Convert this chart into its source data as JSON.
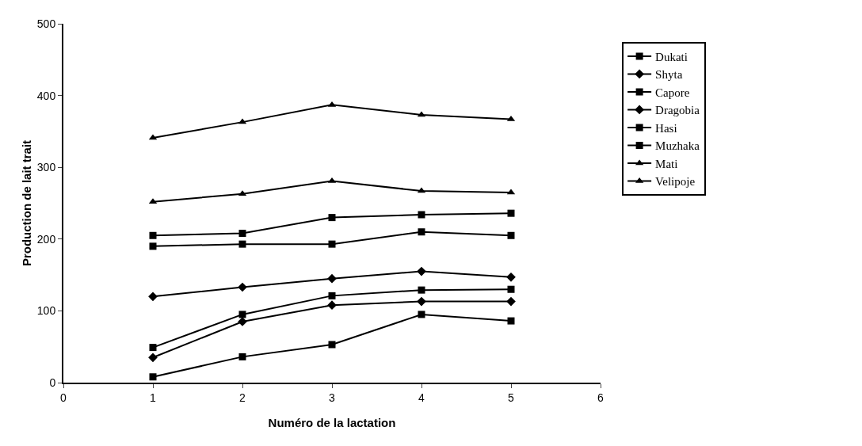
{
  "chart_data": {
    "type": "line",
    "xlabel": "Numéro de la lactation",
    "ylabel": "Production de lait trait",
    "x": [
      1,
      2,
      3,
      4,
      5
    ],
    "series": [
      {
        "name": "Dukati",
        "color": "#000000",
        "marker": "square",
        "values": [
          8,
          36,
          53,
          95,
          86
        ]
      },
      {
        "name": "Shyta",
        "color": "#000000",
        "marker": "diamond",
        "values": [
          35,
          85,
          108,
          113,
          113
        ]
      },
      {
        "name": "Capore",
        "color": "#000000",
        "marker": "square",
        "values": [
          49,
          95,
          121,
          129,
          130
        ]
      },
      {
        "name": "Dragobia",
        "color": "#000000",
        "marker": "diamond",
        "values": [
          120,
          133,
          145,
          155,
          147
        ]
      },
      {
        "name": "Hasi",
        "color": "#000000",
        "marker": "square",
        "values": [
          190,
          193,
          193,
          210,
          205
        ]
      },
      {
        "name": "Muzhaka",
        "color": "#000000",
        "marker": "square",
        "values": [
          205,
          208,
          230,
          234,
          236
        ]
      },
      {
        "name": "Mati",
        "color": "#000000",
        "marker": "triangle",
        "values": [
          252,
          263,
          281,
          267,
          265
        ]
      },
      {
        "name": "Velipoje",
        "color": "#000000",
        "marker": "triangle",
        "values": [
          341,
          363,
          387,
          373,
          367
        ]
      }
    ],
    "xlim": [
      0,
      6
    ],
    "xticks": [
      0,
      1,
      2,
      3,
      4,
      5,
      6
    ],
    "ylim": [
      0,
      500
    ],
    "yticks": [
      0,
      100,
      200,
      300,
      400,
      500
    ],
    "grid": false,
    "legend": "right",
    "line_style": "solid"
  }
}
